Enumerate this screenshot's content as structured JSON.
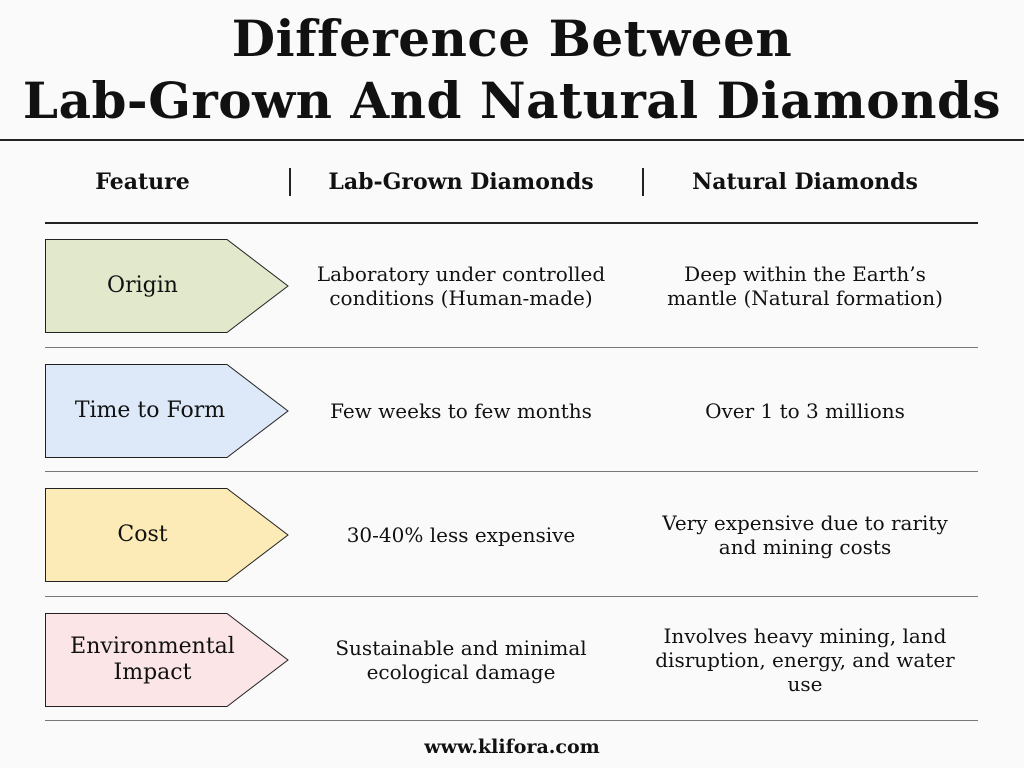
{
  "title": {
    "line1": "Difference Between",
    "line2": "Lab-Grown And Natural Diamonds"
  },
  "headers": {
    "feature": "Feature",
    "lab": "Lab-Grown Diamonds",
    "natural": "Natural Diamonds"
  },
  "rows": [
    {
      "feature": "Origin",
      "lab": "Laboratory under controlled\nconditions (Human-made)",
      "natural": "Deep within the Earth’s\nmantle (Natural formation)",
      "color": "#e1e8cc"
    },
    {
      "feature": "Time to Form",
      "lab": "Few weeks to few months",
      "natural": "Over 1 to 3 millions",
      "color": "#dde9f9"
    },
    {
      "feature": "Cost",
      "lab": "30-40% less expensive",
      "natural": "Very expensive due to rarity\nand mining costs",
      "color": "#fcebb6"
    },
    {
      "feature": "Environmental\nImpact",
      "lab": "Sustainable and minimal\necological damage",
      "natural": "Involves heavy mining, land\ndisruption, energy, and water use",
      "color": "#fbe5e7"
    }
  ],
  "footer": "www.klifora.com"
}
